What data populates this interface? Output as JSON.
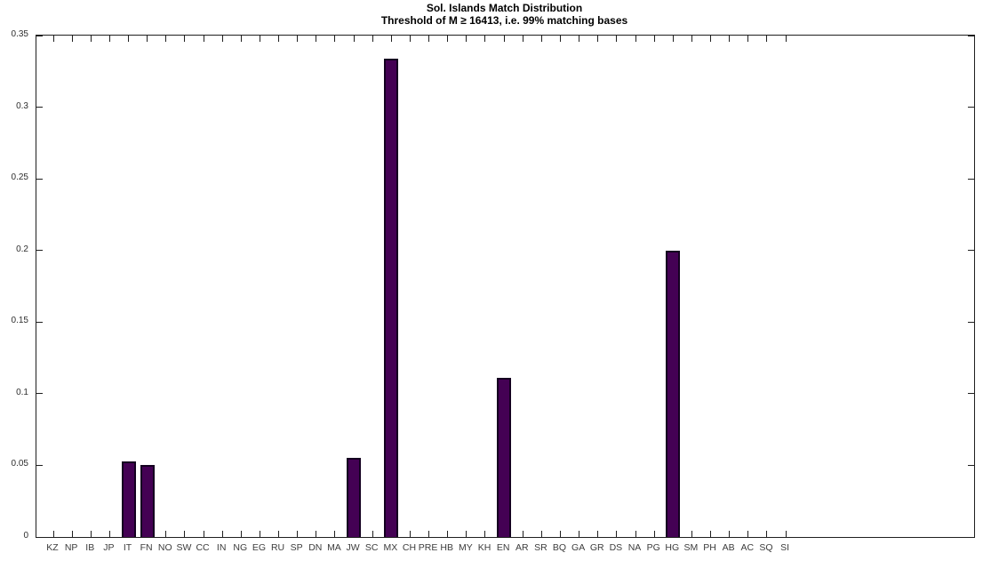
{
  "chart_data": {
    "type": "bar",
    "title": "Sol. Islands Match Distribution",
    "subtitle": "Threshold of M ≥ 16413, i.e. 99% matching bases",
    "categories": [
      "KZ",
      "NP",
      "IB",
      "JP",
      "IT",
      "FN",
      "NO",
      "SW",
      "CC",
      "IN",
      "NG",
      "EG",
      "RU",
      "SP",
      "DN",
      "MA",
      "JW",
      "SC",
      "MX",
      "CH",
      "PRE",
      "HB",
      "MY",
      "KH",
      "EN",
      "AR",
      "SR",
      "BQ",
      "GA",
      "GR",
      "DS",
      "NA",
      "PG",
      "HG",
      "SM",
      "PH",
      "AB",
      "AC",
      "SQ",
      "SI"
    ],
    "values": [
      0,
      0,
      0,
      0,
      0.053,
      0.05,
      0,
      0,
      0,
      0,
      0,
      0,
      0,
      0,
      0,
      0,
      0.055,
      0,
      0.334,
      0,
      0,
      0,
      0,
      0,
      0.111,
      0,
      0,
      0,
      0,
      0,
      0,
      0,
      0,
      0.2,
      0,
      0,
      0,
      0,
      0,
      0
    ],
    "xlabel": "",
    "ylabel": "",
    "ylim": [
      0,
      0.35
    ],
    "y_ticks": [
      0,
      0.05,
      0.1,
      0.15,
      0.2,
      0.25,
      0.3,
      0.35
    ],
    "y_tick_labels": [
      "0",
      "0.05",
      "0.1",
      "0.15",
      "0.2",
      "0.25",
      "0.3",
      "0.35"
    ],
    "grid": false,
    "box": true,
    "tick_direction": "in",
    "legend": null,
    "bar_fill_color": "#440154",
    "bar_edge_color": "#140020",
    "axis_color": "#1f1f1f",
    "tick_label_color": "#3c3c3c",
    "title_color": "#000000"
  }
}
